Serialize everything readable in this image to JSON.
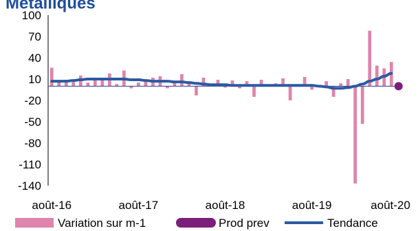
{
  "chart_data": {
    "type": "bar",
    "title": "Métalliques",
    "xlabel": "",
    "ylabel": "",
    "ylim": [
      -140,
      100
    ],
    "y_ticks": [
      100,
      70,
      40,
      10,
      -20,
      -50,
      -80,
      -110,
      -140
    ],
    "x_tick_labels": [
      "août-16",
      "août-17",
      "août-18",
      "août-19",
      "août-20"
    ],
    "grid": false,
    "legend_position": "bottom",
    "colors": {
      "bars": "#de84ad",
      "prod_prev": "#7b1f7a",
      "trend": "#2c5aa0",
      "title": "#1f4e9a"
    },
    "series": [
      {
        "name": "Variation sur m-1",
        "kind": "bar",
        "x": [
          "2016-08",
          "2016-09",
          "2016-10",
          "2016-11",
          "2016-12",
          "2017-01",
          "2017-02",
          "2017-03",
          "2017-04",
          "2017-05",
          "2017-06",
          "2017-07",
          "2017-08",
          "2017-09",
          "2017-10",
          "2017-11",
          "2017-12",
          "2018-01",
          "2018-02",
          "2018-03",
          "2018-04",
          "2018-05",
          "2018-06",
          "2018-07",
          "2018-08",
          "2018-09",
          "2018-10",
          "2018-11",
          "2018-12",
          "2019-01",
          "2019-02",
          "2019-03",
          "2019-04",
          "2019-05",
          "2019-06",
          "2019-07",
          "2019-08",
          "2019-09",
          "2019-10",
          "2019-11",
          "2019-12",
          "2020-01",
          "2020-02",
          "2020-03",
          "2020-04",
          "2020-05",
          "2020-06",
          "2020-07",
          "2020-08"
        ],
        "values": [
          26,
          8,
          9,
          6,
          15,
          5,
          12,
          10,
          18,
          3,
          22,
          -3,
          5,
          9,
          12,
          14,
          -3,
          7,
          17,
          4,
          -13,
          12,
          2,
          9,
          -2,
          8,
          -3,
          7,
          -15,
          9,
          0,
          4,
          11,
          -20,
          2,
          13,
          -5,
          0,
          7,
          -15,
          4,
          10,
          -137,
          -53,
          78,
          29,
          25,
          34,
          null
        ],
        "unit": ""
      },
      {
        "name": "Prod prev",
        "kind": "point",
        "x": [
          "2020-08"
        ],
        "values": [
          0
        ]
      },
      {
        "name": "Tendance",
        "kind": "line",
        "x": [
          "2016-08",
          "2016-09",
          "2016-10",
          "2016-11",
          "2016-12",
          "2017-01",
          "2017-02",
          "2017-03",
          "2017-04",
          "2017-05",
          "2017-06",
          "2017-07",
          "2017-08",
          "2017-09",
          "2017-10",
          "2017-11",
          "2017-12",
          "2018-01",
          "2018-02",
          "2018-03",
          "2018-04",
          "2018-05",
          "2018-06",
          "2018-07",
          "2018-08",
          "2018-09",
          "2018-10",
          "2018-11",
          "2018-12",
          "2019-01",
          "2019-02",
          "2019-03",
          "2019-04",
          "2019-05",
          "2019-06",
          "2019-07",
          "2019-08",
          "2019-09",
          "2019-10",
          "2019-11",
          "2019-12",
          "2020-01",
          "2020-02",
          "2020-03",
          "2020-04",
          "2020-05",
          "2020-06",
          "2020-07"
        ],
        "values": [
          7,
          7,
          7,
          8,
          9,
          10,
          10,
          10,
          10,
          10,
          10,
          9,
          9,
          8,
          7,
          7,
          7,
          6,
          6,
          5,
          4,
          3,
          2,
          2,
          2,
          1,
          1,
          1,
          1,
          1,
          1,
          1,
          1,
          1,
          1,
          1,
          1,
          0,
          -1,
          -3,
          -3,
          -2,
          0,
          3,
          7,
          10,
          14,
          18
        ]
      }
    ]
  }
}
